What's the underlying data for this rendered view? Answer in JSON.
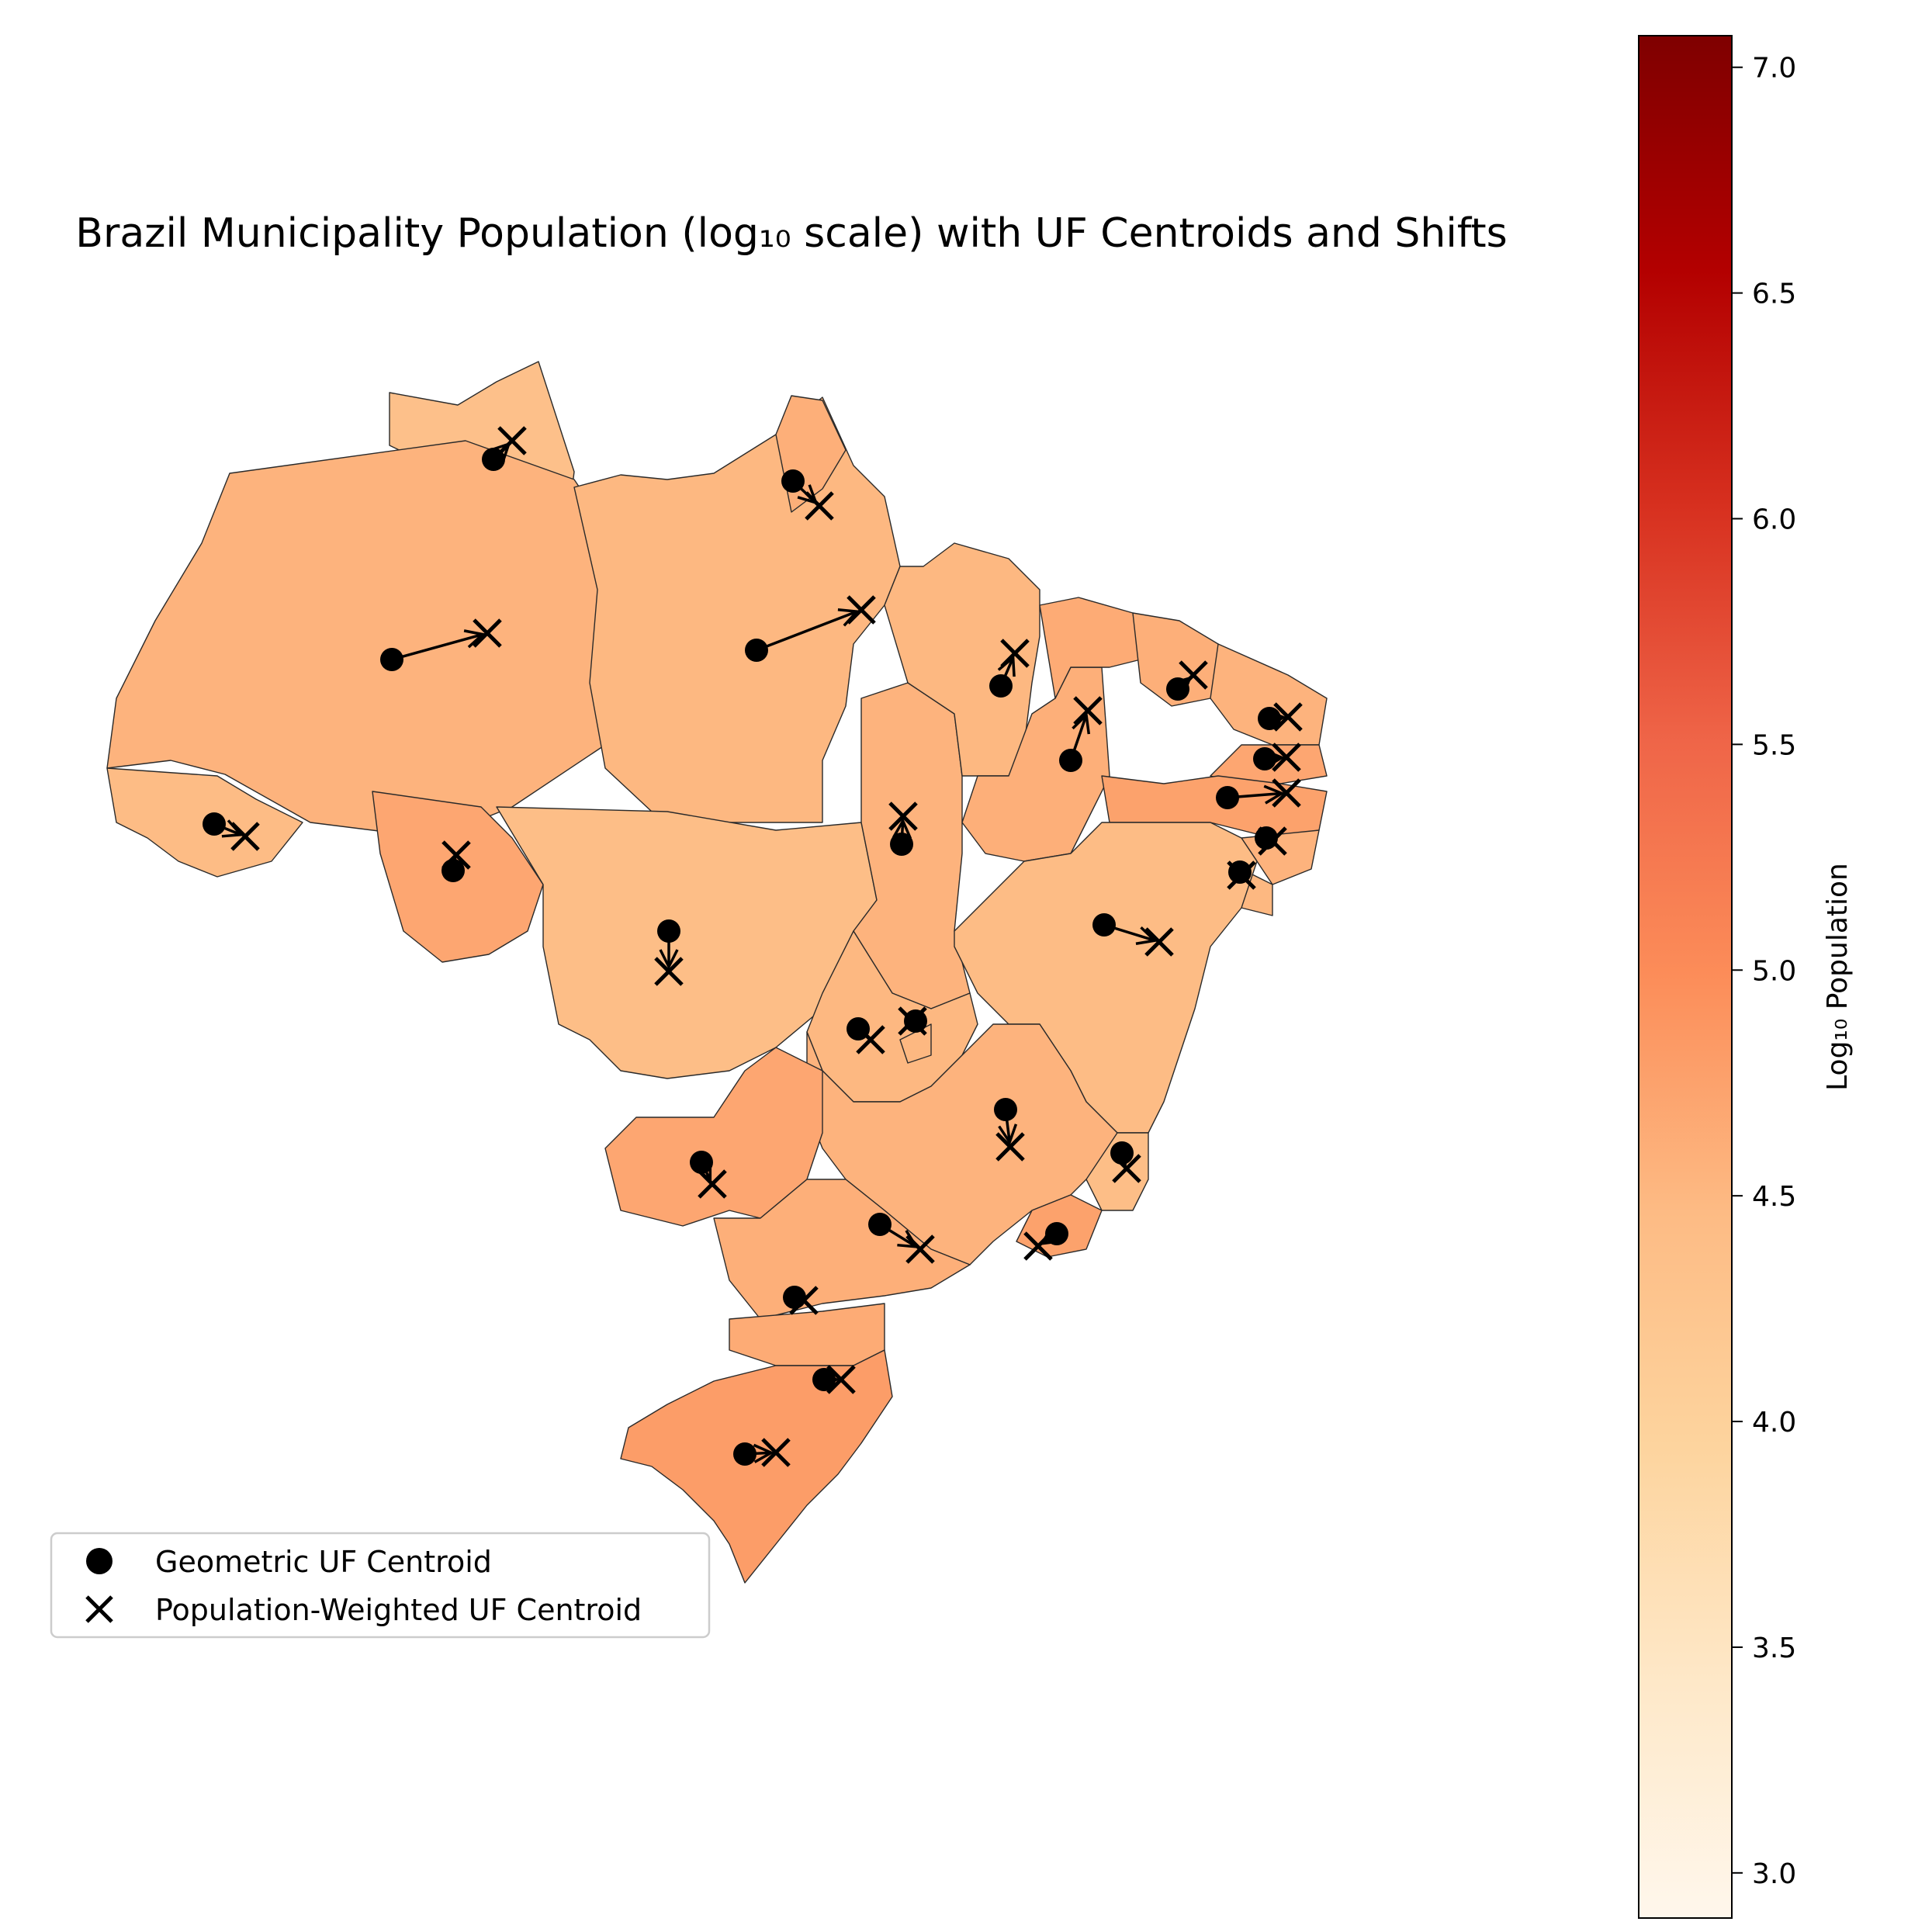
{
  "title": "Brazil Municipality Population (log₁₀ scale) with UF Centroids and Shifts",
  "colorbar": {
    "label": "Log₁₀ Population",
    "colormap": "OrRd",
    "range": [
      2.9,
      7.07
    ],
    "ticks": [
      "3.0",
      "3.5",
      "4.0",
      "4.5",
      "5.0",
      "5.5",
      "6.0",
      "6.5",
      "7.0"
    ],
    "stops": [
      "#fff7ec",
      "#fee8c8",
      "#fdd49e",
      "#fdbb84",
      "#fc8d59",
      "#ef6548",
      "#d7301f",
      "#b30000",
      "#7f0000"
    ]
  },
  "legend": {
    "position": "lower-left",
    "items": [
      {
        "label": "Geometric UF Centroid",
        "marker": "circle"
      },
      {
        "label": "Population-Weighted UF Centroid",
        "marker": "x"
      }
    ]
  },
  "map": {
    "region": "Brazil",
    "marker_color": "#000000",
    "state_fill_log10": [
      4.35,
      4.55,
      4.5,
      4.6,
      4.45,
      4.7,
      4.4,
      4.55,
      4.5,
      4.6,
      4.65,
      4.6,
      4.55,
      4.7,
      4.75,
      4.55,
      4.5,
      4.45,
      4.5,
      4.5,
      4.55,
      4.4,
      4.75,
      4.7,
      4.6,
      4.65,
      4.8
    ]
  }
}
